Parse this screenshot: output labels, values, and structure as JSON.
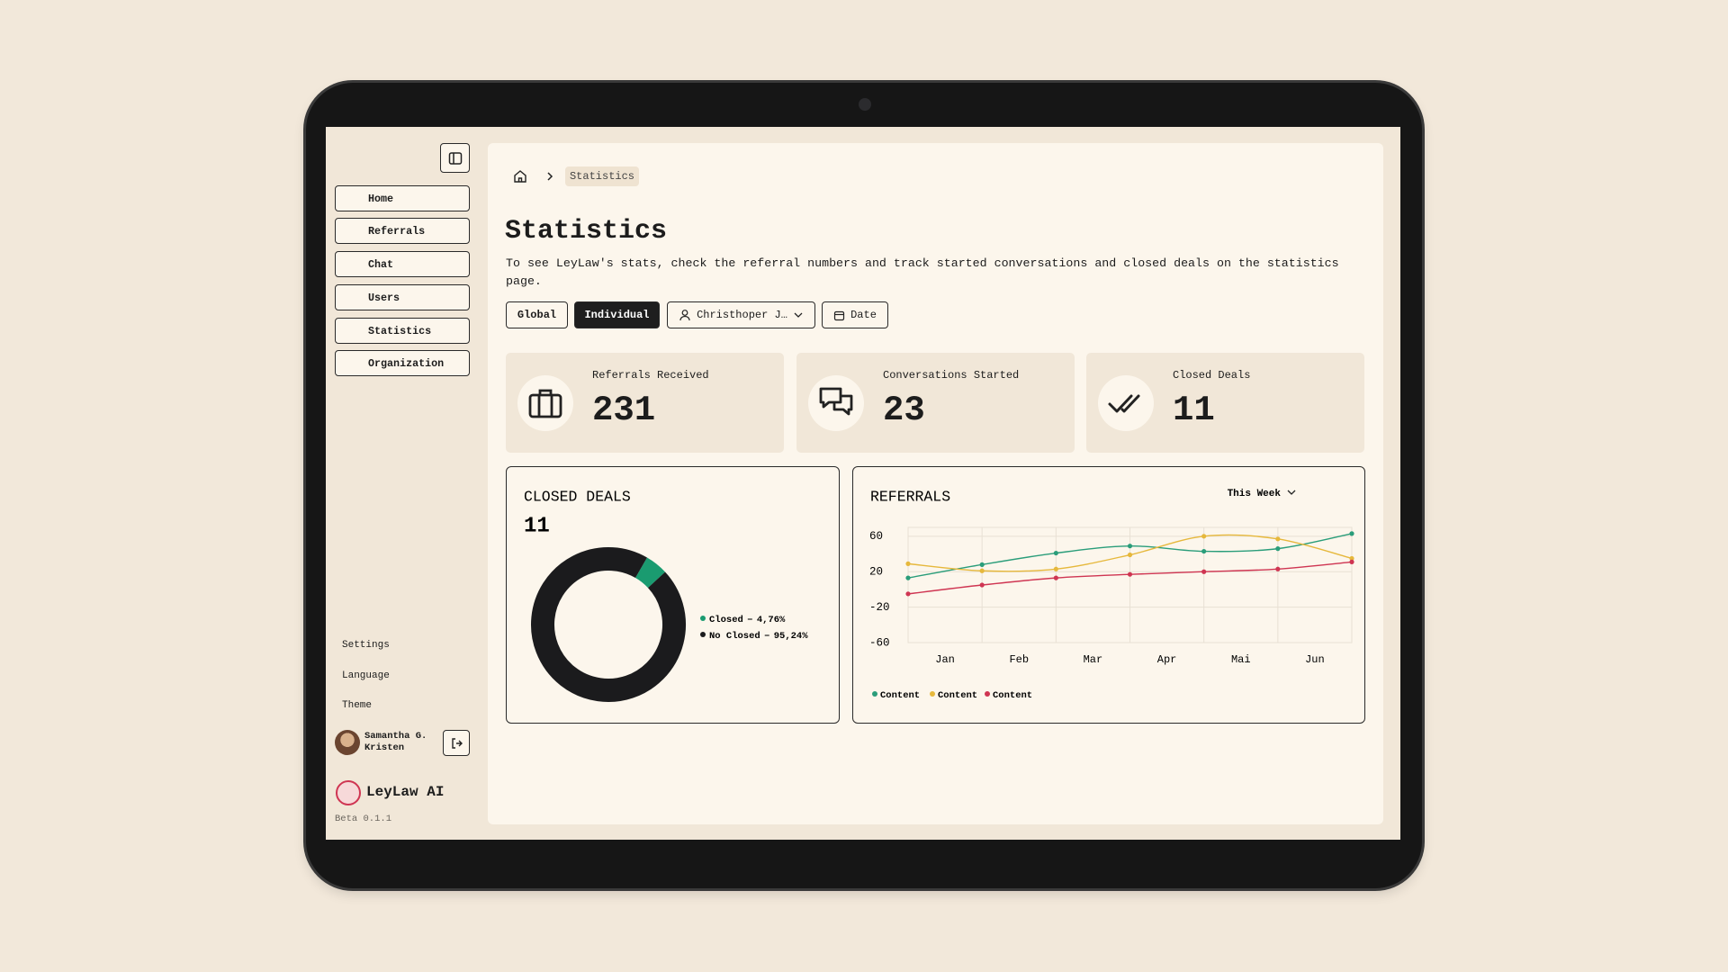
{
  "sidebar": {
    "nav": [
      "Home",
      "Referrals",
      "Chat",
      "Users",
      "Statistics",
      "Organization"
    ],
    "footer_menu": [
      "Settings",
      "Language",
      "Theme"
    ],
    "user_name": "Samantha G. Kristen",
    "brand": "LeyLaw AI",
    "version": "Beta 0.1.1"
  },
  "breadcrumb": {
    "current": "Statistics"
  },
  "header": {
    "title": "Statistics",
    "description": "To see LeyLaw's stats, check the referral numbers and track started conversations and closed deals on the statistics page."
  },
  "filters": [
    "Global",
    "Individual",
    "Christhoper J…",
    "Date"
  ],
  "stats": [
    {
      "label": "Referrals Received",
      "value": 231
    },
    {
      "label": "Conversations Started",
      "value": 23
    },
    {
      "label": "Closed Deals",
      "value": 11
    }
  ],
  "chart_data": [
    {
      "type": "pie",
      "donut": true,
      "title": "CLOSED DEALS",
      "total": 11,
      "categories": [
        "Closed",
        "No Closed"
      ],
      "values": [
        4.76,
        95.24
      ],
      "value_labels": [
        "4,76%",
        "95,24%"
      ],
      "colors": [
        "#1a9b70",
        "#1b1b1d"
      ]
    },
    {
      "type": "line",
      "title": "REFERRALS",
      "period": "This Week",
      "categories": [
        "Jan",
        "Feb",
        "Mar",
        "Apr",
        "Mai",
        "Jun",
        null
      ],
      "series": [
        {
          "name": "Content",
          "color": "#2a9d7a",
          "values": [
            13,
            28,
            41,
            49,
            43,
            46,
            63
          ]
        },
        {
          "name": "Content",
          "color": "#e6b83c",
          "values": [
            29,
            21,
            23,
            39,
            60,
            57,
            35
          ]
        },
        {
          "name": "Content",
          "color": "#cf3552",
          "values": [
            -5,
            5,
            13,
            17,
            20,
            23,
            31
          ]
        }
      ],
      "ylim": [
        -60,
        70
      ],
      "yticks": [
        60,
        20,
        -20,
        -60
      ],
      "grid": true,
      "smooth": true
    }
  ]
}
